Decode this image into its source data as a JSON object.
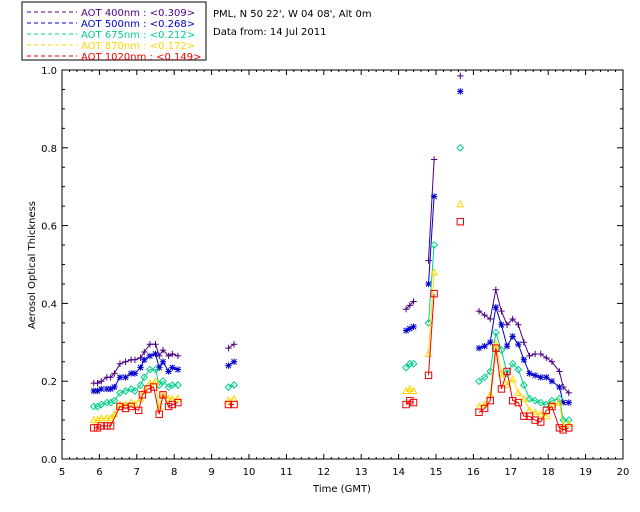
{
  "chart_data": {
    "type": "line",
    "title": "",
    "station": "PML, N 50 22', W 04 08', Alt 0m",
    "date_text": "Data from: 14 Jul 2011",
    "xlabel": "Time (GMT)",
    "ylabel": "Aerosol Optical Thickness",
    "xlim": [
      5,
      20
    ],
    "ylim": [
      0.0,
      1.0
    ],
    "xticks": [
      "5",
      "6",
      "7",
      "8",
      "9",
      "10",
      "11",
      "12",
      "13",
      "14",
      "15",
      "16",
      "17",
      "18",
      "19",
      "20"
    ],
    "yticks": [
      "0.0",
      "0.2",
      "0.4",
      "0.6",
      "0.8",
      "1.0"
    ],
    "series": [
      {
        "name": "AOT  400nm",
        "legend": "AOT  400nm : <0.309>",
        "color": "#4b0082",
        "marker": "plus",
        "segments": [
          [
            [
              5.85,
              0.195
            ],
            [
              5.95,
              0.195
            ],
            [
              6.05,
              0.2
            ],
            [
              6.2,
              0.21
            ],
            [
              6.3,
              0.21
            ],
            [
              6.4,
              0.22
            ],
            [
              6.55,
              0.245
            ],
            [
              6.7,
              0.25
            ],
            [
              6.85,
              0.255
            ],
            [
              6.95,
              0.255
            ],
            [
              7.1,
              0.26
            ],
            [
              7.2,
              0.275
            ],
            [
              7.35,
              0.295
            ],
            [
              7.5,
              0.295
            ],
            [
              7.6,
              0.265
            ],
            [
              7.7,
              0.28
            ],
            [
              7.85,
              0.265
            ],
            [
              7.95,
              0.27
            ],
            [
              8.1,
              0.265
            ]
          ],
          [
            [
              9.45,
              0.285
            ],
            [
              9.6,
              0.295
            ]
          ],
          [
            [
              14.2,
              0.385
            ],
            [
              14.3,
              0.395
            ],
            [
              14.4,
              0.405
            ]
          ],
          [
            [
              14.8,
              0.51
            ],
            [
              14.95,
              0.77
            ]
          ],
          [
            [
              15.65,
              0.985
            ]
          ],
          [
            [
              16.15,
              0.38
            ],
            [
              16.3,
              0.37
            ],
            [
              16.45,
              0.36
            ],
            [
              16.6,
              0.435
            ],
            [
              16.75,
              0.38
            ],
            [
              16.9,
              0.345
            ],
            [
              17.05,
              0.36
            ],
            [
              17.2,
              0.345
            ],
            [
              17.35,
              0.3
            ],
            [
              17.5,
              0.265
            ],
            [
              17.65,
              0.27
            ],
            [
              17.8,
              0.27
            ],
            [
              17.95,
              0.26
            ],
            [
              18.1,
              0.25
            ],
            [
              18.3,
              0.225
            ],
            [
              18.4,
              0.185
            ],
            [
              18.55,
              0.17
            ]
          ]
        ]
      },
      {
        "name": "AOT  500nm",
        "legend": "AOT  500nm : <0.268>",
        "color": "#0000cd",
        "marker": "asterisk",
        "segments": [
          [
            [
              5.85,
              0.175
            ],
            [
              5.95,
              0.175
            ],
            [
              6.05,
              0.18
            ],
            [
              6.2,
              0.18
            ],
            [
              6.3,
              0.18
            ],
            [
              6.4,
              0.185
            ],
            [
              6.55,
              0.21
            ],
            [
              6.7,
              0.21
            ],
            [
              6.85,
              0.22
            ],
            [
              6.95,
              0.22
            ],
            [
              7.1,
              0.235
            ],
            [
              7.2,
              0.255
            ],
            [
              7.35,
              0.265
            ],
            [
              7.5,
              0.27
            ],
            [
              7.6,
              0.235
            ],
            [
              7.7,
              0.25
            ],
            [
              7.85,
              0.225
            ],
            [
              7.95,
              0.235
            ],
            [
              8.1,
              0.23
            ]
          ],
          [
            [
              9.45,
              0.24
            ],
            [
              9.6,
              0.25
            ]
          ],
          [
            [
              14.2,
              0.33
            ],
            [
              14.3,
              0.335
            ],
            [
              14.4,
              0.34
            ]
          ],
          [
            [
              14.8,
              0.45
            ],
            [
              14.95,
              0.675
            ]
          ],
          [
            [
              15.65,
              0.945
            ]
          ],
          [
            [
              16.15,
              0.285
            ],
            [
              16.3,
              0.29
            ],
            [
              16.45,
              0.3
            ],
            [
              16.6,
              0.39
            ],
            [
              16.75,
              0.345
            ],
            [
              16.9,
              0.29
            ],
            [
              17.05,
              0.315
            ],
            [
              17.2,
              0.295
            ],
            [
              17.35,
              0.255
            ],
            [
              17.5,
              0.22
            ],
            [
              17.65,
              0.215
            ],
            [
              17.8,
              0.21
            ],
            [
              17.95,
              0.21
            ],
            [
              18.1,
              0.2
            ],
            [
              18.3,
              0.185
            ],
            [
              18.4,
              0.145
            ],
            [
              18.55,
              0.145
            ]
          ]
        ]
      },
      {
        "name": "AOT  675nm",
        "legend": "AOT  675nm : <0.212>",
        "color": "#00d08a",
        "marker": "diamond",
        "segments": [
          [
            [
              5.85,
              0.135
            ],
            [
              5.95,
              0.135
            ],
            [
              6.05,
              0.14
            ],
            [
              6.2,
              0.145
            ],
            [
              6.3,
              0.145
            ],
            [
              6.4,
              0.15
            ],
            [
              6.55,
              0.17
            ],
            [
              6.7,
              0.175
            ],
            [
              6.85,
              0.18
            ],
            [
              6.95,
              0.175
            ],
            [
              7.1,
              0.19
            ],
            [
              7.2,
              0.21
            ],
            [
              7.35,
              0.23
            ],
            [
              7.5,
              0.23
            ],
            [
              7.6,
              0.19
            ],
            [
              7.7,
              0.2
            ],
            [
              7.85,
              0.185
            ],
            [
              7.95,
              0.19
            ],
            [
              8.1,
              0.19
            ]
          ],
          [
            [
              9.45,
              0.185
            ],
            [
              9.6,
              0.19
            ]
          ],
          [
            [
              14.2,
              0.235
            ],
            [
              14.3,
              0.245
            ],
            [
              14.4,
              0.245
            ]
          ],
          [
            [
              14.8,
              0.35
            ],
            [
              14.95,
              0.55
            ]
          ],
          [
            [
              15.65,
              0.8
            ]
          ],
          [
            [
              16.15,
              0.2
            ],
            [
              16.3,
              0.21
            ],
            [
              16.45,
              0.225
            ],
            [
              16.6,
              0.325
            ],
            [
              16.75,
              0.28
            ],
            [
              16.9,
              0.22
            ],
            [
              17.05,
              0.245
            ],
            [
              17.2,
              0.23
            ],
            [
              17.35,
              0.19
            ],
            [
              17.5,
              0.155
            ],
            [
              17.65,
              0.15
            ],
            [
              17.8,
              0.145
            ],
            [
              17.95,
              0.14
            ],
            [
              18.1,
              0.15
            ],
            [
              18.3,
              0.155
            ],
            [
              18.4,
              0.1
            ],
            [
              18.55,
              0.1
            ]
          ]
        ]
      },
      {
        "name": "AOT  870nm",
        "legend": "AOT  870nm : <0.172>",
        "color": "#ffd700",
        "marker": "triangle",
        "segments": [
          [
            [
              5.85,
              0.1
            ],
            [
              5.95,
              0.1
            ],
            [
              6.05,
              0.105
            ],
            [
              6.2,
              0.105
            ],
            [
              6.3,
              0.105
            ],
            [
              6.4,
              0.115
            ],
            [
              6.55,
              0.14
            ],
            [
              6.7,
              0.14
            ],
            [
              6.85,
              0.145
            ],
            [
              6.95,
              0.14
            ],
            [
              7.1,
              0.155
            ],
            [
              7.2,
              0.175
            ],
            [
              7.35,
              0.195
            ],
            [
              7.5,
              0.2
            ],
            [
              7.6,
              0.13
            ],
            [
              7.7,
              0.165
            ],
            [
              7.85,
              0.155
            ],
            [
              7.95,
              0.155
            ],
            [
              8.1,
              0.155
            ]
          ],
          [
            [
              9.45,
              0.15
            ],
            [
              9.6,
              0.155
            ]
          ],
          [
            [
              14.2,
              0.175
            ],
            [
              14.3,
              0.18
            ],
            [
              14.4,
              0.175
            ]
          ],
          [
            [
              14.8,
              0.27
            ],
            [
              14.95,
              0.48
            ]
          ],
          [
            [
              15.65,
              0.655
            ]
          ],
          [
            [
              16.15,
              0.135
            ],
            [
              16.3,
              0.14
            ],
            [
              16.45,
              0.165
            ],
            [
              16.6,
              0.295
            ],
            [
              16.75,
              0.22
            ],
            [
              16.9,
              0.19
            ],
            [
              17.05,
              0.205
            ],
            [
              17.2,
              0.17
            ],
            [
              17.35,
              0.155
            ],
            [
              17.5,
              0.125
            ],
            [
              17.65,
              0.12
            ],
            [
              17.8,
              0.115
            ],
            [
              17.95,
              0.11
            ],
            [
              18.1,
              0.14
            ],
            [
              18.3,
              0.145
            ],
            [
              18.4,
              0.085
            ],
            [
              18.55,
              0.09
            ]
          ]
        ]
      },
      {
        "name": "AOT 1020nm",
        "legend": "AOT 1020nm : <0.149>",
        "color": "#ee0000",
        "marker": "square",
        "segments": [
          [
            [
              5.85,
              0.08
            ],
            [
              5.95,
              0.08
            ],
            [
              6.05,
              0.085
            ],
            [
              6.2,
              0.085
            ],
            [
              6.3,
              0.085
            ],
            [
              6.55,
              0.135
            ],
            [
              6.7,
              0.13
            ],
            [
              6.85,
              0.135
            ],
            [
              7.05,
              0.125
            ],
            [
              7.15,
              0.165
            ],
            [
              7.3,
              0.18
            ],
            [
              7.45,
              0.185
            ],
            [
              7.6,
              0.115
            ],
            [
              7.7,
              0.165
            ],
            [
              7.85,
              0.135
            ],
            [
              7.95,
              0.14
            ],
            [
              8.1,
              0.145
            ]
          ],
          [
            [
              9.45,
              0.14
            ],
            [
              9.6,
              0.14
            ]
          ],
          [
            [
              14.2,
              0.14
            ],
            [
              14.3,
              0.15
            ],
            [
              14.4,
              0.145
            ]
          ],
          [
            [
              14.8,
              0.215
            ],
            [
              14.95,
              0.425
            ]
          ],
          [
            [
              15.65,
              0.61
            ]
          ],
          [
            [
              16.15,
              0.12
            ],
            [
              16.3,
              0.13
            ],
            [
              16.45,
              0.15
            ],
            [
              16.6,
              0.285
            ],
            [
              16.75,
              0.18
            ],
            [
              16.9,
              0.225
            ],
            [
              17.05,
              0.15
            ],
            [
              17.2,
              0.145
            ],
            [
              17.35,
              0.11
            ],
            [
              17.5,
              0.11
            ],
            [
              17.65,
              0.1
            ],
            [
              17.8,
              0.095
            ],
            [
              17.95,
              0.125
            ],
            [
              18.1,
              0.135
            ],
            [
              18.3,
              0.08
            ],
            [
              18.4,
              0.075
            ],
            [
              18.55,
              0.08
            ]
          ]
        ]
      }
    ]
  }
}
